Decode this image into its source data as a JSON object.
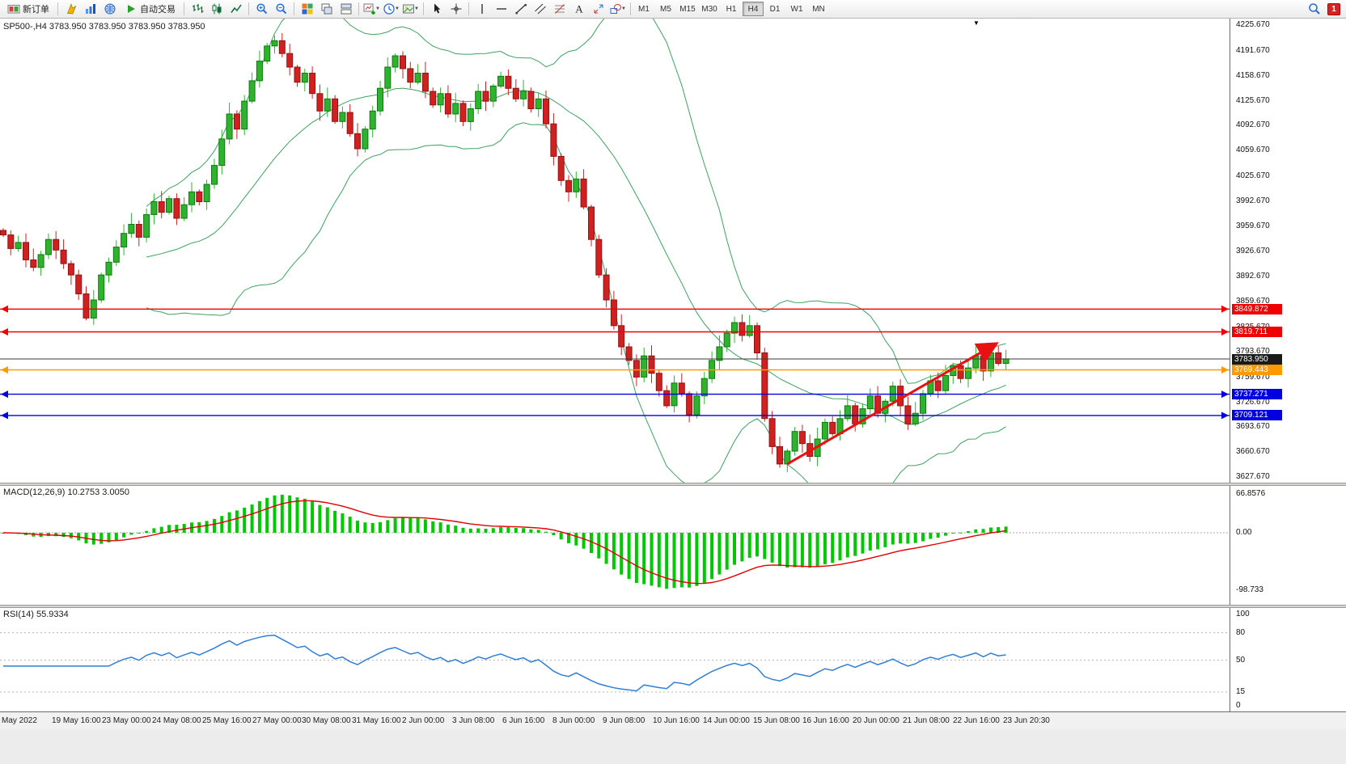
{
  "toolbar": {
    "notification_count": "1",
    "items": [
      {
        "kind": "button",
        "name": "new-order-button",
        "icon": "new-order-icon",
        "label": "新订单"
      },
      {
        "kind": "sep"
      },
      {
        "kind": "icon",
        "name": "mailbox-icon",
        "icon": "mailbox-icon"
      },
      {
        "kind": "icon",
        "name": "market-watch-icon",
        "icon": "market-watch-icon"
      },
      {
        "kind": "icon",
        "name": "community-icon",
        "icon": "community-icon"
      },
      {
        "kind": "button",
        "name": "autotrade-button",
        "icon": "autotrade-icon",
        "label": "自动交易"
      },
      {
        "kind": "sep"
      },
      {
        "kind": "icon",
        "name": "bars-chart-icon",
        "icon": "bars-chart-icon"
      },
      {
        "kind": "icon",
        "name": "candles-chart-icon",
        "icon": "candles-chart-icon"
      },
      {
        "kind": "icon",
        "name": "line-chart-icon",
        "icon": "line-chart-icon"
      },
      {
        "kind": "sep"
      },
      {
        "kind": "icon",
        "name": "zoom-in-icon",
        "icon": "zoom-in-icon"
      },
      {
        "kind": "icon",
        "name": "zoom-out-icon",
        "icon": "zoom-out-icon"
      },
      {
        "kind": "sep"
      },
      {
        "kind": "icon",
        "name": "tile-windows-icon",
        "icon": "tile-windows-icon"
      },
      {
        "kind": "icon",
        "name": "cascade-windows-icon",
        "icon": "cascade-windows-icon"
      },
      {
        "kind": "icon",
        "name": "arrange-windows-icon",
        "icon": "arrange-windows-icon"
      },
      {
        "kind": "sep"
      },
      {
        "kind": "icon",
        "name": "new-chart-icon",
        "icon": "new-chart-icon",
        "caret": true
      },
      {
        "kind": "icon",
        "name": "period-icon",
        "icon": "period-icon",
        "caret": true
      },
      {
        "kind": "icon",
        "name": "template-icon",
        "icon": "template-icon",
        "caret": true
      },
      {
        "kind": "sep"
      },
      {
        "kind": "icon",
        "name": "cursor-icon",
        "icon": "cursor-icon"
      },
      {
        "kind": "icon",
        "name": "crosshair-icon",
        "icon": "crosshair-icon"
      },
      {
        "kind": "sep"
      },
      {
        "kind": "icon",
        "name": "vertical-line-icon",
        "icon": "vertical-line-icon"
      },
      {
        "kind": "icon",
        "name": "horizontal-line-icon",
        "icon": "horizontal-line-icon"
      },
      {
        "kind": "icon",
        "name": "trendline-icon",
        "icon": "trendline-icon"
      },
      {
        "kind": "icon",
        "name": "channel-icon",
        "icon": "channel-icon"
      },
      {
        "kind": "icon",
        "name": "fibonacci-icon",
        "icon": "fibonacci-icon"
      },
      {
        "kind": "icon",
        "name": "text-icon",
        "icon": "text-icon"
      },
      {
        "kind": "icon",
        "name": "arrows-icon",
        "icon": "arrows-icon"
      },
      {
        "kind": "icon",
        "name": "shapes-icon",
        "icon": "shapes-icon",
        "caret": true
      },
      {
        "kind": "sep"
      }
    ],
    "timeframes": [
      {
        "label": "M1",
        "active": false
      },
      {
        "label": "M5",
        "active": false
      },
      {
        "label": "M15",
        "active": false
      },
      {
        "label": "M30",
        "active": false
      },
      {
        "label": "H1",
        "active": false
      },
      {
        "label": "H4",
        "active": true
      },
      {
        "label": "D1",
        "active": false
      },
      {
        "label": "W1",
        "active": false
      },
      {
        "label": "MN",
        "active": false
      }
    ]
  },
  "chart": {
    "symbol_header": "SP500-,H4  3783.950 3783.950 3783.950 3783.950",
    "macd_label": "MACD(12,26,9) 10.2753 3.0050",
    "rsi_label": "RSI(14) 55.9334",
    "shift_marker": "▼"
  },
  "chart_data": {
    "type": "candlestick",
    "symbol": "SP500-",
    "timeframe": "H4",
    "ohlc": {
      "open": "3783.950",
      "high": "3783.950",
      "low": "3783.950",
      "close": "3783.950"
    },
    "closes": [
      3948,
      3930,
      3938,
      3915,
      3905,
      3922,
      3942,
      3928,
      3910,
      3895,
      3870,
      3838,
      3862,
      3895,
      3912,
      3932,
      3950,
      3962,
      3945,
      3975,
      3992,
      3978,
      3996,
      3970,
      3988,
      4005,
      3992,
      4015,
      4040,
      4075,
      4108,
      4088,
      4125,
      4152,
      4178,
      4198,
      4205,
      4188,
      4170,
      4150,
      4162,
      4135,
      4112,
      4128,
      4098,
      4110,
      4082,
      4062,
      4088,
      4112,
      4142,
      4170,
      4185,
      4168,
      4150,
      4162,
      4138,
      4120,
      4135,
      4108,
      4122,
      4098,
      4115,
      4138,
      4125,
      4145,
      4158,
      4142,
      4128,
      4138,
      4115,
      4128,
      4095,
      4052,
      4020,
      4005,
      4022,
      3985,
      3942,
      3895,
      3862,
      3828,
      3800,
      3782,
      3760,
      3788,
      3765,
      3742,
      3722,
      3752,
      3738,
      3710,
      3735,
      3758,
      3782,
      3800,
      3818,
      3832,
      3815,
      3828,
      3792,
      3705,
      3668,
      3645,
      3662,
      3688,
      3672,
      3655,
      3678,
      3700,
      3685,
      3705,
      3722,
      3698,
      3718,
      3735,
      3712,
      3728,
      3748,
      3722,
      3698,
      3712,
      3738,
      3755,
      3742,
      3762,
      3775,
      3758,
      3772,
      3788,
      3768,
      3792,
      3778,
      3784
    ],
    "candle_up_color": "#2fb32f",
    "candle_down_color": "#d02020",
    "price_axis_ticks": [
      "4225.670",
      "4191.670",
      "4158.670",
      "4125.670",
      "4092.670",
      "4059.670",
      "4025.670",
      "3992.670",
      "3959.670",
      "3926.670",
      "3892.670",
      "3859.670",
      "3825.670",
      "3793.670",
      "3759.670",
      "3726.670",
      "3693.670",
      "3660.670",
      "3627.670"
    ],
    "time_axis_ticks": [
      "May 2022",
      "19 May 16:00",
      "23 May 00:00",
      "24 May 08:00",
      "25 May 16:00",
      "27 May 00:00",
      "30 May 08:00",
      "31 May 16:00",
      "2 Jun 00:00",
      "3 Jun 08:00",
      "6 Jun 16:00",
      "8 Jun 00:00",
      "9 Jun 08:00",
      "10 Jun 16:00",
      "14 Jun 00:00",
      "15 Jun 08:00",
      "16 Jun 16:00",
      "20 Jun 00:00",
      "21 Jun 08:00",
      "22 Jun 16:00",
      "23 Jun 20:30"
    ],
    "levels": [
      {
        "label": "3849.872",
        "price": 3849.872,
        "color": "#f00000"
      },
      {
        "label": "3819.711",
        "price": 3819.711,
        "color": "#f00000"
      },
      {
        "label": "3769.443",
        "price": 3769.443,
        "color": "#ff9900"
      },
      {
        "label": "3737.271",
        "price": 3737.271,
        "color": "#0000e0"
      },
      {
        "label": "3709.121",
        "price": 3709.121,
        "color": "#0000e0"
      }
    ],
    "current_price": {
      "label": "3783.950",
      "price": 3783.95,
      "color": "#3a3a3a",
      "tag_color": "#1a1a1a"
    },
    "trend_arrow": {
      "from_index": 104,
      "from_price": 3645,
      "to_index": 131.5,
      "to_price": 3803,
      "color": "#e81010"
    },
    "indicators": {
      "bollinger": {
        "period": 20,
        "deviation": 2,
        "color": "#3da35f"
      },
      "macd": {
        "fast": 12,
        "slow": 26,
        "signal": 9,
        "main_value": "10.2753",
        "signal_value": "3.0050",
        "axis": [
          "66.8576",
          "0.00",
          "-98.733"
        ],
        "histogram_color": "#00c800",
        "signal_color": "#e00000"
      },
      "rsi": {
        "period": 14,
        "value": "55.9334",
        "axis": [
          "100",
          "80",
          "50",
          "15",
          "0"
        ],
        "levels": [
          80,
          50,
          15
        ],
        "color": "#2f7fd6"
      }
    }
  }
}
